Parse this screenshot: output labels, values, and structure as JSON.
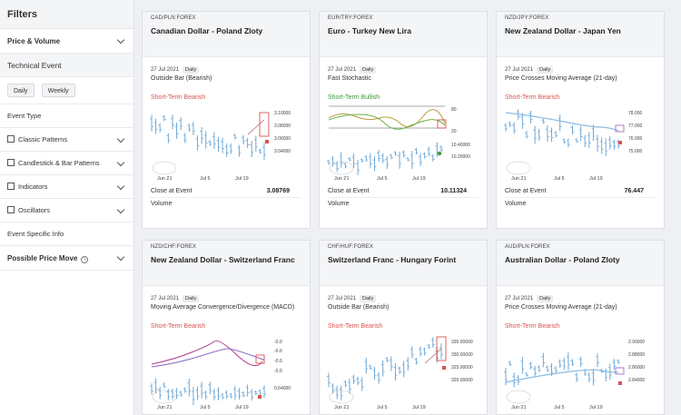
{
  "sidebar": {
    "title": "Filters",
    "price_volume": "Price & Volume",
    "technical_event": "Technical Event",
    "buttons": [
      "Daily",
      "Weekly"
    ],
    "event_type": "Event Type",
    "checks": [
      "Classic Patterns",
      "Candlestick & Bar Patterns",
      "Indicators",
      "Oscillators"
    ],
    "event_specific": "Event Specific Info",
    "possible_move": "Possible Price Move"
  },
  "cards": [
    {
      "symbol": "CAD/PLN:FOREX",
      "title": "Canadian Dollar - Poland Zloty",
      "date": "27 Jul 2021",
      "freq": "Daily",
      "pattern": "Outside Bar (Bearish)",
      "signal": "Short-Term Bearish",
      "signal_type": "bear",
      "y_ticks": [
        "3.10000",
        "3.08000",
        "3.06000",
        "3.04000"
      ],
      "x_ticks": [
        "Jun 21",
        "Jul 5",
        "Jul 19"
      ],
      "close_label": "Close at Event",
      "close_value": "3.08769",
      "volume_label": "Volume"
    },
    {
      "symbol": "EUR/TRY:FOREX",
      "title": "Euro - Turkey New Lira",
      "date": "27 Jul 2021",
      "freq": "Daily",
      "pattern": "Fast Stochastic",
      "signal": "Short-Term Bullish",
      "signal_type": "bull",
      "y_ticks": [
        "80",
        "20",
        "10.40000",
        "10.20000"
      ],
      "x_ticks": [
        "Jun 21",
        "Jul 5",
        "Jul 19"
      ],
      "close_label": "Close at Event",
      "close_value": "10.11324",
      "volume_label": "Volume"
    },
    {
      "symbol": "NZD/JPY:FOREX",
      "title": "New Zealand Dollar - Japan Yen",
      "date": "27 Jul 2021",
      "freq": "Daily",
      "pattern": "Price Crosses Moving Average (21-day)",
      "signal": "Short-Term Bearish",
      "signal_type": "bear",
      "y_ticks": [
        "78.000",
        "77.000",
        "76.000",
        "75.000"
      ],
      "x_ticks": [
        "Jun 21",
        "Jul 5",
        "Jul 19"
      ],
      "close_label": "Close at Event",
      "close_value": "76.447",
      "volume_label": "Volume"
    },
    {
      "symbol": "NZD/CHF:FOREX",
      "title": "New Zealand Dollar - Switzerland Franc",
      "date": "27 Jul 2021",
      "freq": "Daily",
      "pattern": "Moving Average Convergence/Divergence (MACD)",
      "signal": "Short-Term Bearish",
      "signal_type": "bear",
      "y_ticks": [
        "-0.0",
        "-0.0",
        "-0.0",
        "-0.0",
        "0.64000"
      ],
      "x_ticks": [
        "Jun 21",
        "Jul 5",
        "Jul 19"
      ]
    },
    {
      "symbol": "CHF/HUF:FOREX",
      "title": "Switzerland Franc - Hungary Forint",
      "date": "27 Jul 2021",
      "freq": "Daily",
      "pattern": "Outside Bar (Bearish)",
      "signal": "Short-Term Bearish",
      "signal_type": "bear",
      "y_ticks": [
        "335.00000",
        "330.00000",
        "325.00000",
        "320.00000"
      ],
      "x_ticks": [
        "Jun 21",
        "Jul 5",
        "Jul 19"
      ]
    },
    {
      "symbol": "AUD/PLN:FOREX",
      "title": "Australian Dollar - Poland Zloty",
      "date": "27 Jul 2021",
      "freq": "Daily",
      "pattern": "Price Crosses Moving Average (21-day)",
      "signal": "Short-Term Bearish",
      "signal_type": "bear",
      "y_ticks": [
        "2.90000",
        "2.88000",
        "2.86000",
        "2.84000"
      ],
      "x_ticks": [
        "Jun 21",
        "Jul 5",
        "Jul 19"
      ]
    }
  ],
  "colors": {
    "bar": "#6fa8d6",
    "bear": "#d9534f",
    "bull": "#3a9a3a",
    "macd": "#b03a8c",
    "signal_line": "#8a6bc4",
    "stoch_k": "#b59b3a",
    "stoch_d": "#6bb34a"
  }
}
